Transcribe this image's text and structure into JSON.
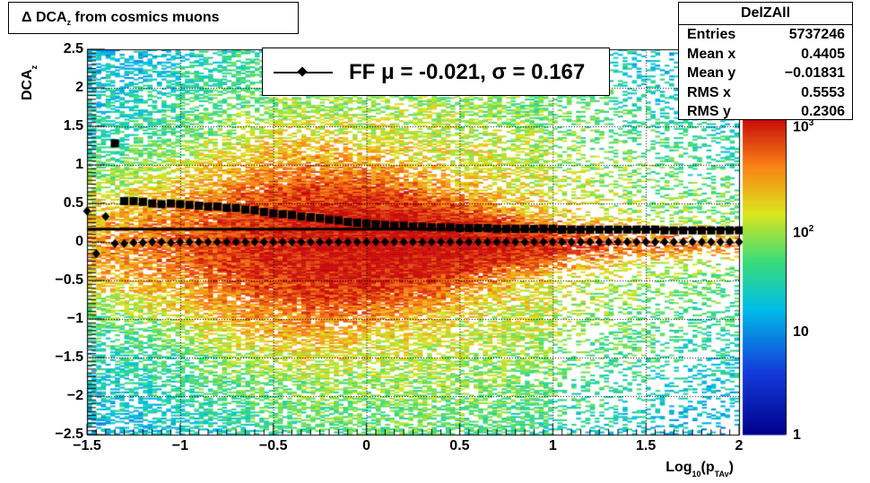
{
  "title": {
    "prefix": "Δ DCA",
    "sub": "z",
    "suffix": " from cosmics muons"
  },
  "legend": {
    "text": "FF μ = -0.021, σ =   0.167"
  },
  "stats": {
    "name": "DelZAll",
    "rows": [
      {
        "label": "Entries",
        "value": "5737246"
      },
      {
        "label": "Mean x",
        "value": "0.4405"
      },
      {
        "label": "Mean y",
        "value": "−0.01831"
      },
      {
        "label": "RMS x",
        "value": "0.5553"
      },
      {
        "label": "RMS y",
        "value": "0.2306"
      }
    ]
  },
  "axes": {
    "ylabel_main": "DCA",
    "ylabel_sub": "z",
    "xlabel_main": "Log",
    "xlabel_sub1": "10",
    "xlabel_mid": "(p",
    "xlabel_sub2": "TAv",
    "xlabel_end": ")"
  },
  "chart_data": {
    "type": "heatmap",
    "xlim": [
      -1.5,
      2
    ],
    "ylim": [
      -2.5,
      2.5
    ],
    "x_ticks": [
      "−1.5",
      "−1",
      "−0.5",
      "0",
      "0.5",
      "1",
      "1.5",
      "2"
    ],
    "x_tick_values": [
      -1.5,
      -1,
      -0.5,
      0,
      0.5,
      1,
      1.5,
      2
    ],
    "y_ticks": [
      "−2.5",
      "−2",
      "−1.5",
      "−1",
      "−0.5",
      "0",
      "0.5",
      "1",
      "1.5",
      "2",
      "2.5"
    ],
    "y_tick_values": [
      -2.5,
      -2,
      -1.5,
      -1,
      -0.5,
      0,
      0.5,
      1,
      1.5,
      2,
      2.5
    ],
    "grid": true,
    "colorbar": {
      "scale": "log",
      "labels": [
        "1",
        "10",
        "10",
        "10"
      ],
      "label_powers": [
        "",
        "",
        "2",
        "3"
      ],
      "label_values": [
        1,
        10,
        100,
        1000
      ]
    },
    "fit_line_y": 0.167,
    "series": [
      {
        "marker": "diamond",
        "x": [
          -1.5,
          -1.45,
          -1.4,
          -1.35,
          -1.3,
          -1.25,
          -1.2,
          -1.15,
          -1.1,
          -1.05,
          -1.0,
          -0.95,
          -0.9,
          -0.85,
          -0.8,
          -0.75,
          -0.7,
          -0.65,
          -0.6,
          -0.55,
          -0.5,
          -0.45,
          -0.4,
          -0.35,
          -0.3,
          -0.25,
          -0.2,
          -0.15,
          -0.1,
          -0.05,
          0,
          0.05,
          0.1,
          0.15,
          0.2,
          0.25,
          0.3,
          0.35,
          0.4,
          0.45,
          0.5,
          0.55,
          0.6,
          0.65,
          0.7,
          0.75,
          0.8,
          0.85,
          0.9,
          0.95,
          1.0,
          1.05,
          1.1,
          1.15,
          1.2,
          1.25,
          1.3,
          1.35,
          1.4,
          1.45,
          1.5,
          1.55,
          1.6,
          1.65,
          1.7,
          1.75,
          1.8,
          1.85,
          1.9,
          1.95,
          2.0
        ],
        "y": [
          0.4,
          -0.15,
          0.33,
          -0.02,
          -0.02,
          -0.01,
          -0.01,
          0.0,
          0.0,
          -0.01,
          0.0,
          0.0,
          0.0,
          0.0,
          0.0,
          0.0,
          0.0,
          0.0,
          0.0,
          0.0,
          0.0,
          0.0,
          0.0,
          0.0,
          0.0,
          0.0,
          0.0,
          0.0,
          0.0,
          0.0,
          0.0,
          0.0,
          0.0,
          0.0,
          0.0,
          0.0,
          0.0,
          0.0,
          0.0,
          0.0,
          0.0,
          0.0,
          0.0,
          0.0,
          0.0,
          0.0,
          0.0,
          0.0,
          0.0,
          0.0,
          0.0,
          0.0,
          0.0,
          0.0,
          0.0,
          0.0,
          0.0,
          0.0,
          0.0,
          0.0,
          0.0,
          0.0,
          0.0,
          0.0,
          0.0,
          0.0,
          0.0,
          0.0,
          0.0,
          0.0,
          0.0
        ]
      },
      {
        "marker": "square",
        "x": [
          -1.35,
          -1.3,
          -1.25,
          -1.2,
          -1.15,
          -1.1,
          -1.05,
          -1.0,
          -0.95,
          -0.9,
          -0.85,
          -0.8,
          -0.75,
          -0.7,
          -0.65,
          -0.6,
          -0.55,
          -0.5,
          -0.45,
          -0.4,
          -0.35,
          -0.3,
          -0.25,
          -0.2,
          -0.15,
          -0.1,
          -0.05,
          0,
          0.05,
          0.1,
          0.15,
          0.2,
          0.25,
          0.3,
          0.35,
          0.4,
          0.45,
          0.5,
          0.55,
          0.6,
          0.65,
          0.7,
          0.75,
          0.8,
          0.85,
          0.9,
          0.95,
          1.0,
          1.05,
          1.1,
          1.15,
          1.2,
          1.25,
          1.3,
          1.35,
          1.4,
          1.45,
          1.5,
          1.55,
          1.6,
          1.65,
          1.7,
          1.75,
          1.8,
          1.85,
          1.9,
          1.95,
          2.0
        ],
        "y": [
          1.28,
          0.53,
          0.53,
          0.52,
          0.5,
          0.49,
          0.5,
          0.49,
          0.48,
          0.47,
          0.46,
          0.46,
          0.44,
          0.44,
          0.42,
          0.41,
          0.39,
          0.37,
          0.36,
          0.35,
          0.33,
          0.32,
          0.31,
          0.29,
          0.28,
          0.26,
          0.25,
          0.24,
          0.23,
          0.22,
          0.21,
          0.21,
          0.2,
          0.2,
          0.19,
          0.19,
          0.19,
          0.18,
          0.18,
          0.18,
          0.18,
          0.17,
          0.17,
          0.17,
          0.17,
          0.17,
          0.17,
          0.17,
          0.16,
          0.16,
          0.16,
          0.16,
          0.16,
          0.16,
          0.16,
          0.16,
          0.16,
          0.16,
          0.16,
          0.15,
          0.15,
          0.15,
          0.15,
          0.15,
          0.15,
          0.15,
          0.15,
          0.15
        ]
      }
    ]
  }
}
